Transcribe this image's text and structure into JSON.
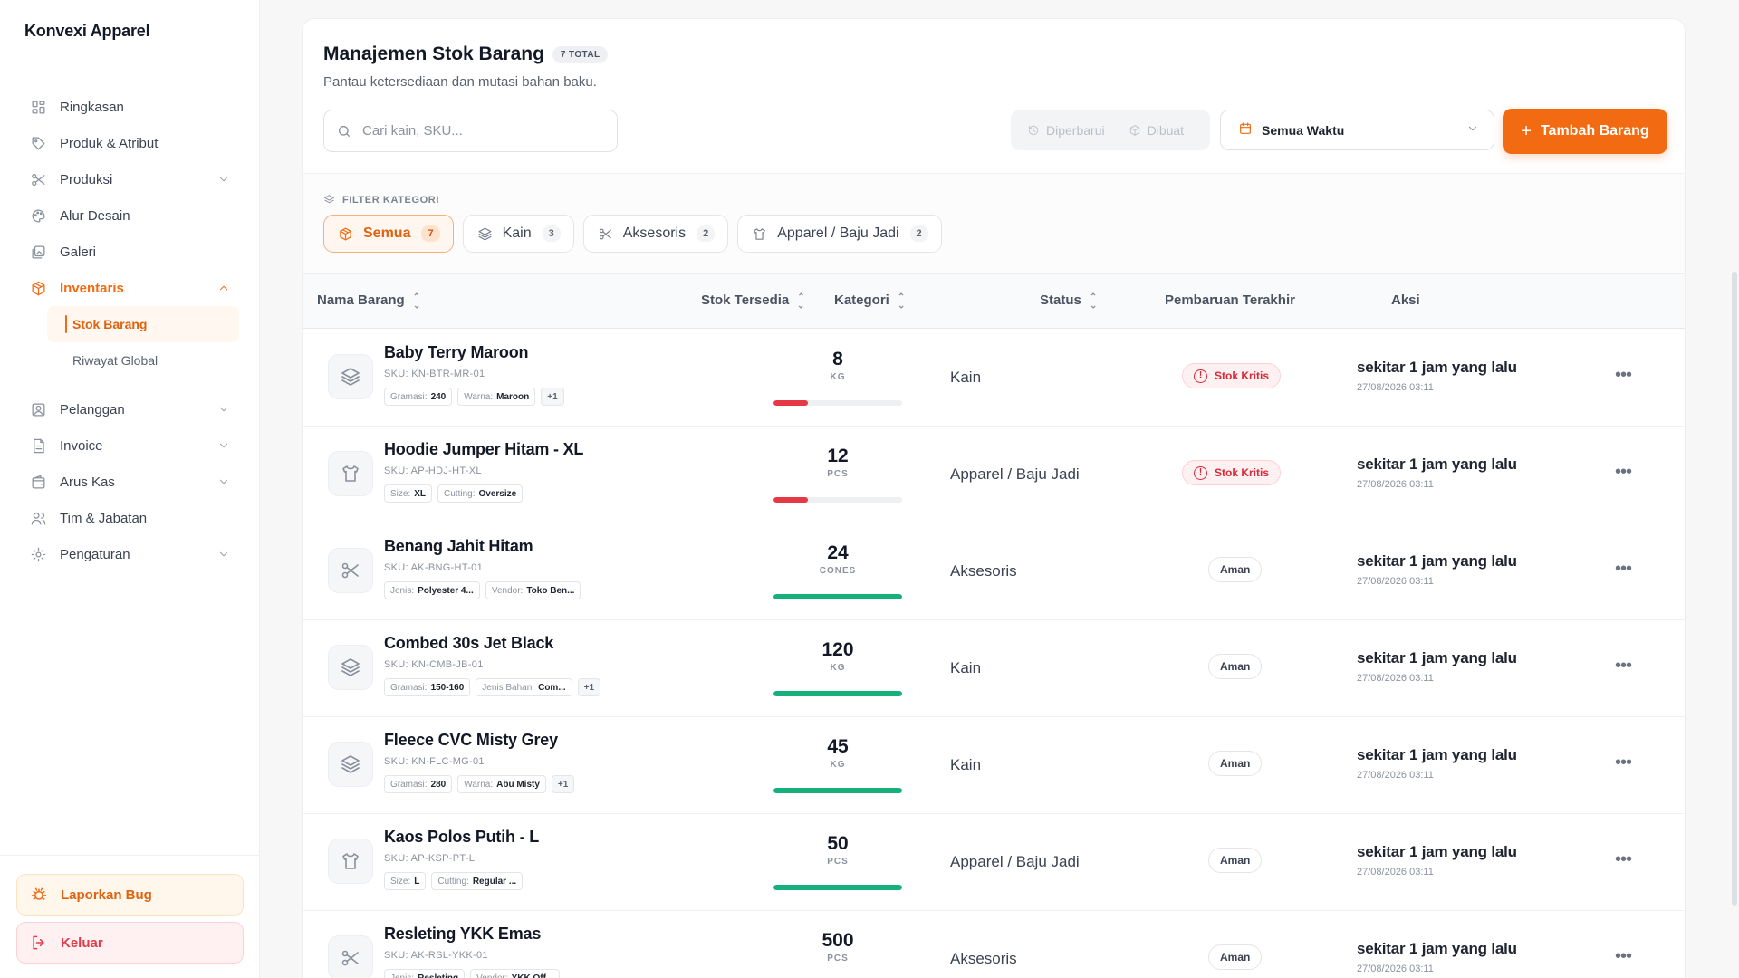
{
  "app": {
    "brand": "Konvexi Apparel"
  },
  "sidebar": {
    "items": [
      {
        "label": "Ringkasan",
        "icon": "grid-icon"
      },
      {
        "label": "Produk & Atribut",
        "icon": "tag-icon"
      },
      {
        "label": "Produksi",
        "icon": "scissors-icon",
        "chevron": "down"
      },
      {
        "label": "Alur Desain",
        "icon": "palette-icon"
      },
      {
        "label": "Galeri",
        "icon": "gallery-icon"
      },
      {
        "label": "Inventaris",
        "icon": "box-icon",
        "chevron": "up",
        "active": true
      },
      {
        "label": "Pelanggan",
        "icon": "user-card-icon",
        "chevron": "down"
      },
      {
        "label": "Invoice",
        "icon": "document-icon",
        "chevron": "down"
      },
      {
        "label": "Arus Kas",
        "icon": "wallet-icon",
        "chevron": "down"
      },
      {
        "label": "Tim & Jabatan",
        "icon": "users-icon"
      },
      {
        "label": "Pengaturan",
        "icon": "gear-icon",
        "chevron": "down"
      }
    ],
    "inventory_sub": [
      {
        "label": "Stok Barang",
        "active": true
      },
      {
        "label": "Riwayat Global"
      }
    ],
    "report_bug": "Laporkan Bug",
    "logout": "Keluar"
  },
  "header": {
    "title": "Manajemen Stok Barang",
    "total_badge": "7 TOTAL",
    "subtitle": "Pantau ketersediaan dan mutasi bahan baku."
  },
  "toolbar": {
    "search_placeholder": "Cari kain, SKU...",
    "sort_updated": "Diperbarui",
    "sort_created": "Dibuat",
    "date_filter": "Semua Waktu",
    "add_button": "Tambah Barang"
  },
  "filter": {
    "label": "FILTER KATEGORI",
    "chips": [
      {
        "label": "Semua",
        "count": "7",
        "active": true,
        "icon": "box-icon"
      },
      {
        "label": "Kain",
        "count": "3",
        "icon": "layers-icon"
      },
      {
        "label": "Aksesoris",
        "count": "2",
        "icon": "scissors-icon"
      },
      {
        "label": "Apparel / Baju Jadi",
        "count": "2",
        "icon": "shirt-icon"
      }
    ]
  },
  "table": {
    "columns": [
      "Nama Barang",
      "Stok Tersedia",
      "Kategori",
      "Status",
      "Pembaruan Terakhir",
      "Aksi"
    ],
    "rows": [
      {
        "name": "Baby Terry Maroon",
        "sku": "SKU: KN-BTR-MR-01",
        "icon": "layers-icon",
        "attrs": [
          {
            "k": "Gramasi:",
            "v": "240"
          },
          {
            "k": "Warna:",
            "v": "Maroon"
          }
        ],
        "more": "+1",
        "stock": "8",
        "unit": "KG",
        "level": 0.27,
        "critical": true,
        "category": "Kain",
        "status": "Stok Kritis",
        "updated": "sekitar 1 jam yang lalu",
        "timestamp": "27/08/2026 03:11"
      },
      {
        "name": "Hoodie Jumper Hitam - XL",
        "sku": "SKU: AP-HDJ-HT-XL",
        "icon": "shirt-icon",
        "attrs": [
          {
            "k": "Size:",
            "v": "XL"
          },
          {
            "k": "Cutting:",
            "v": "Oversize"
          }
        ],
        "more": "",
        "stock": "12",
        "unit": "PCS",
        "level": 0.27,
        "critical": true,
        "category": "Apparel / Baju Jadi",
        "status": "Stok Kritis",
        "updated": "sekitar 1 jam yang lalu",
        "timestamp": "27/08/2026 03:11"
      },
      {
        "name": "Benang Jahit Hitam",
        "sku": "SKU: AK-BNG-HT-01",
        "icon": "scissors-icon",
        "attrs": [
          {
            "k": "Jenis:",
            "v": "Polyester 4..."
          },
          {
            "k": "Vendor:",
            "v": "Toko Ben..."
          }
        ],
        "more": "",
        "stock": "24",
        "unit": "CONES",
        "level": 1,
        "critical": false,
        "category": "Aksesoris",
        "status": "Aman",
        "updated": "sekitar 1 jam yang lalu",
        "timestamp": "27/08/2026 03:11"
      },
      {
        "name": "Combed 30s Jet Black",
        "sku": "SKU: KN-CMB-JB-01",
        "icon": "layers-icon",
        "attrs": [
          {
            "k": "Gramasi:",
            "v": "150-160"
          },
          {
            "k": "Jenis Bahan:",
            "v": "Com..."
          }
        ],
        "more": "+1",
        "stock": "120",
        "unit": "KG",
        "level": 1,
        "critical": false,
        "category": "Kain",
        "status": "Aman",
        "updated": "sekitar 1 jam yang lalu",
        "timestamp": "27/08/2026 03:11"
      },
      {
        "name": "Fleece CVC Misty Grey",
        "sku": "SKU: KN-FLC-MG-01",
        "icon": "layers-icon",
        "attrs": [
          {
            "k": "Gramasi:",
            "v": "280"
          },
          {
            "k": "Warna:",
            "v": "Abu Misty"
          }
        ],
        "more": "+1",
        "stock": "45",
        "unit": "KG",
        "level": 1,
        "critical": false,
        "category": "Kain",
        "status": "Aman",
        "updated": "sekitar 1 jam yang lalu",
        "timestamp": "27/08/2026 03:11"
      },
      {
        "name": "Kaos Polos Putih - L",
        "sku": "SKU: AP-KSP-PT-L",
        "icon": "shirt-icon",
        "attrs": [
          {
            "k": "Size:",
            "v": "L"
          },
          {
            "k": "Cutting:",
            "v": "Regular ..."
          }
        ],
        "more": "",
        "stock": "50",
        "unit": "PCS",
        "level": 1,
        "critical": false,
        "category": "Apparel / Baju Jadi",
        "status": "Aman",
        "updated": "sekitar 1 jam yang lalu",
        "timestamp": "27/08/2026 03:11"
      },
      {
        "name": "Resleting YKK Emas",
        "sku": "SKU: AK-RSL-YKK-01",
        "icon": "scissors-icon",
        "attrs": [
          {
            "k": "Jenis:",
            "v": "Resleting"
          },
          {
            "k": "Vendor:",
            "v": "YKK Off..."
          }
        ],
        "more": "",
        "stock": "500",
        "unit": "PCS",
        "level": 1,
        "critical": false,
        "category": "Aksesoris",
        "status": "Aman",
        "updated": "sekitar 1 jam yang lalu",
        "timestamp": "27/08/2026 03:11"
      }
    ]
  },
  "colors": {
    "accent": "#f26a12",
    "critical": "#e53a45",
    "safe": "#16b07a"
  }
}
